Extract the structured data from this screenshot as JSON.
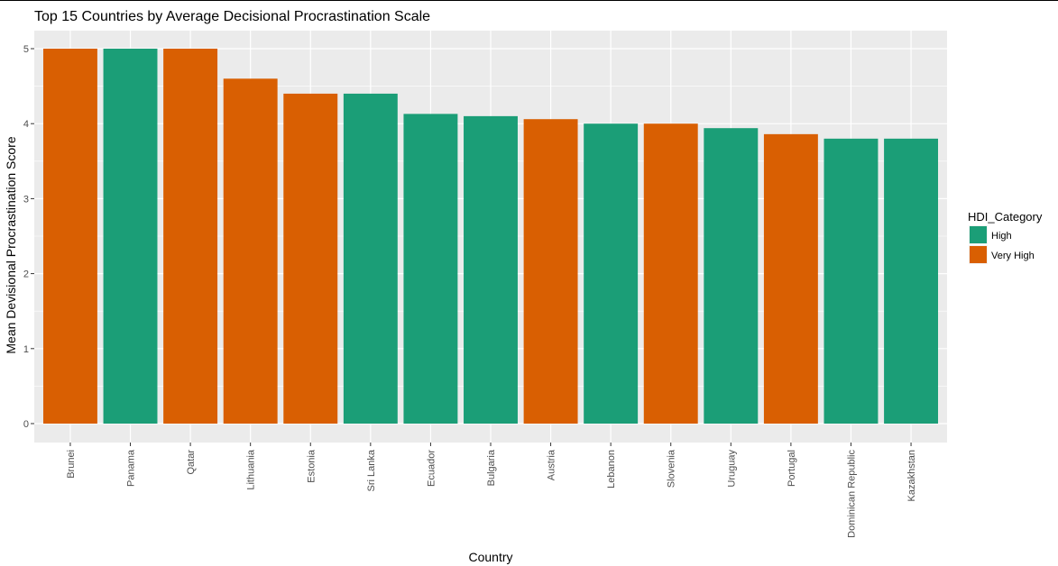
{
  "chart_data": {
    "type": "bar",
    "title": "Top 15 Countries by Average Decisional Procrastination Scale",
    "xlabel": "Country",
    "ylabel": "Mean Devisional Procrastination Score",
    "ylim": [
      0,
      5.2
    ],
    "yticks": [
      "0",
      "1",
      "2",
      "3",
      "4",
      "5"
    ],
    "grid": true,
    "legend_position": "right",
    "legend_title": "HDI_Category",
    "legend": [
      {
        "name": "High",
        "color": "#1b9e77"
      },
      {
        "name": "Very High",
        "color": "#d95f02"
      }
    ],
    "categories": [
      "Brunei",
      "Panama",
      "Qatar",
      "Lithuania",
      "Estonia",
      "Sri Lanka",
      "Ecuador",
      "Bulgaria",
      "Austria",
      "Lebanon",
      "Slovenia",
      "Uruguay",
      "Portugal",
      "Dominican Republic",
      "Kazakhstan"
    ],
    "values": [
      5.0,
      5.0,
      5.0,
      4.6,
      4.4,
      4.4,
      4.13,
      4.1,
      4.06,
      4.0,
      4.0,
      3.94,
      3.86,
      3.8,
      3.8
    ],
    "groups": [
      "Very High",
      "High",
      "Very High",
      "Very High",
      "Very High",
      "High",
      "High",
      "High",
      "Very High",
      "High",
      "Very High",
      "High",
      "Very High",
      "High",
      "High"
    ],
    "panel_background": "#ebebeb",
    "grid_color": "#ffffff"
  }
}
